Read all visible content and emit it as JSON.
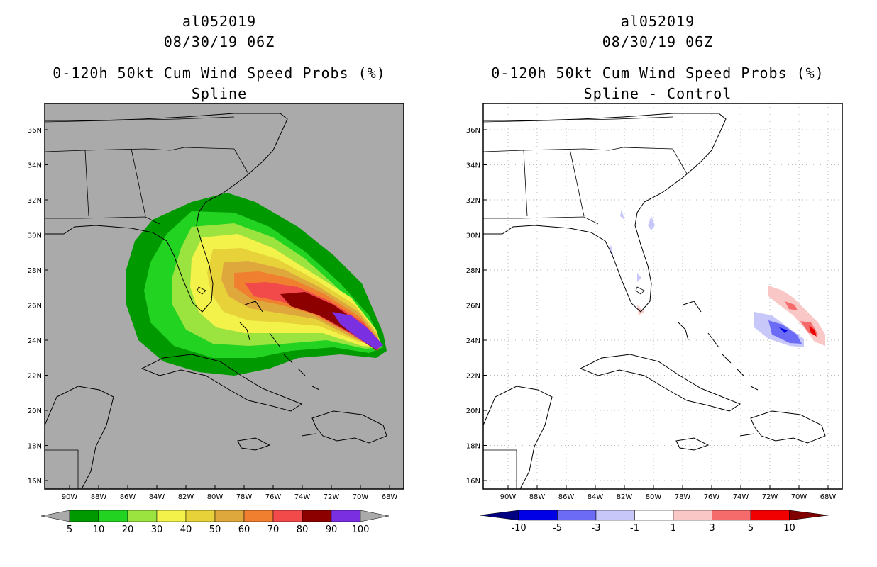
{
  "left": {
    "storm_id": "al052019",
    "datetime": "08/30/19 06Z",
    "product": "0-120h 50kt Cum Wind Speed Probs (%)",
    "subtitle": "Spline",
    "colorbar": {
      "labels": [
        "5",
        "10",
        "20",
        "30",
        "40",
        "50",
        "60",
        "70",
        "80",
        "90",
        "100"
      ],
      "colors": [
        "#009900",
        "#22d322",
        "#9be33f",
        "#f2f24a",
        "#e8d23a",
        "#dfa83d",
        "#f07f30",
        "#f24a4a",
        "#8c0000",
        "#7a2fe0"
      ],
      "end_color": "#aaaaaa"
    },
    "background": "#aaaaaa"
  },
  "right": {
    "storm_id": "al052019",
    "datetime": "08/30/19 06Z",
    "product": "0-120h 50kt Cum Wind Speed Probs (%)",
    "subtitle": "Spline - Control",
    "colorbar": {
      "labels": [
        "-10",
        "-5",
        "-3",
        "-1",
        "1",
        "3",
        "5",
        "10"
      ],
      "colors": [
        "#0000e6",
        "#6b6bf5",
        "#c7c7fa",
        "#ffffff",
        "#fac7c7",
        "#f56b6b",
        "#f00000"
      ],
      "end_left": "#000080",
      "end_right": "#800000"
    },
    "background": "#ffffff"
  },
  "axes": {
    "lon_labels": [
      "90W",
      "88W",
      "86W",
      "84W",
      "82W",
      "80W",
      "78W",
      "76W",
      "74W",
      "72W",
      "70W",
      "68W"
    ],
    "lat_labels": [
      "36N",
      "34N",
      "32N",
      "30N",
      "28N",
      "26N",
      "24N",
      "22N",
      "20N",
      "18N",
      "16N"
    ]
  }
}
